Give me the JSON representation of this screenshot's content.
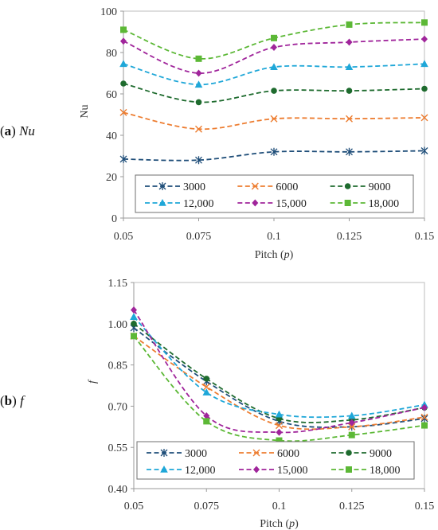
{
  "chart_data": [
    {
      "type": "line",
      "panel_letter": "a",
      "panel_symbol": "Nu",
      "xlabel_text": "Pitch (",
      "xlabel_var": "p",
      "xlabel_close": ")",
      "ylabel": "Nu",
      "x": [
        0.05,
        0.075,
        0.1,
        0.125,
        0.15
      ],
      "x_tick_labels": [
        "0.05",
        "0.075",
        "0.1",
        "0.125",
        "0.15"
      ],
      "ylim": [
        0,
        100
      ],
      "y_ticks": [
        0,
        20,
        40,
        60,
        80,
        100
      ],
      "y_tick_labels": [
        "0",
        "20",
        "40",
        "60",
        "80",
        "100"
      ],
      "grid": "none",
      "legend_placement": "bottom-inside",
      "series": [
        {
          "name": "3000",
          "color": "#1f4e79",
          "marker": "star",
          "values": [
            28.5,
            28,
            32,
            32,
            32.5
          ]
        },
        {
          "name": "6000",
          "color": "#ed7d31",
          "marker": "x",
          "values": [
            51,
            43,
            48,
            48,
            48.5
          ]
        },
        {
          "name": "9000",
          "color": "#1e6b2e",
          "marker": "circle",
          "values": [
            65,
            56,
            61.5,
            61.5,
            62.5
          ]
        },
        {
          "name": "12,000",
          "color": "#1fa7d8",
          "marker": "triangle",
          "values": [
            74.5,
            64.5,
            73,
            73,
            74.5
          ]
        },
        {
          "name": "15,000",
          "color": "#a0259b",
          "marker": "diamond",
          "values": [
            85.5,
            70,
            82.5,
            85,
            86.5
          ]
        },
        {
          "name": "18,000",
          "color": "#5cb836",
          "marker": "square",
          "values": [
            91,
            77,
            87,
            93.5,
            94.5
          ]
        }
      ]
    },
    {
      "type": "line",
      "panel_letter": "b",
      "panel_symbol": "f",
      "xlabel_text": "Pitch (",
      "xlabel_var": "p",
      "xlabel_close": ")",
      "ylabel": "f",
      "x": [
        0.05,
        0.075,
        0.1,
        0.125,
        0.15
      ],
      "x_tick_labels": [
        "0.05",
        "0.075",
        "0.1",
        "0.125",
        "0.15"
      ],
      "ylim": [
        0.4,
        1.15
      ],
      "y_ticks": [
        0.4,
        0.55,
        0.7,
        0.85,
        1.0,
        1.15
      ],
      "y_tick_labels": [
        "0.40",
        "0.55",
        "0.70",
        "0.85",
        "1.00",
        "1.15"
      ],
      "grid": "none",
      "legend_placement": "bottom-inside",
      "series": [
        {
          "name": "3000",
          "color": "#1f4e79",
          "marker": "star",
          "values": [
            0.985,
            0.79,
            0.645,
            0.625,
            0.655
          ]
        },
        {
          "name": "6000",
          "color": "#ed7d31",
          "marker": "x",
          "values": [
            0.955,
            0.77,
            0.63,
            0.625,
            0.66
          ]
        },
        {
          "name": "9000",
          "color": "#1e6b2e",
          "marker": "circle",
          "values": [
            1.0,
            0.8,
            0.655,
            0.65,
            0.695
          ]
        },
        {
          "name": "12,000",
          "color": "#1fa7d8",
          "marker": "triangle",
          "values": [
            1.025,
            0.75,
            0.67,
            0.665,
            0.705
          ]
        },
        {
          "name": "15,000",
          "color": "#a0259b",
          "marker": "diamond",
          "values": [
            1.05,
            0.665,
            0.605,
            0.64,
            0.695
          ]
        },
        {
          "name": "18,000",
          "color": "#5cb836",
          "marker": "square",
          "values": [
            0.955,
            0.645,
            0.575,
            0.595,
            0.63
          ]
        }
      ]
    }
  ]
}
